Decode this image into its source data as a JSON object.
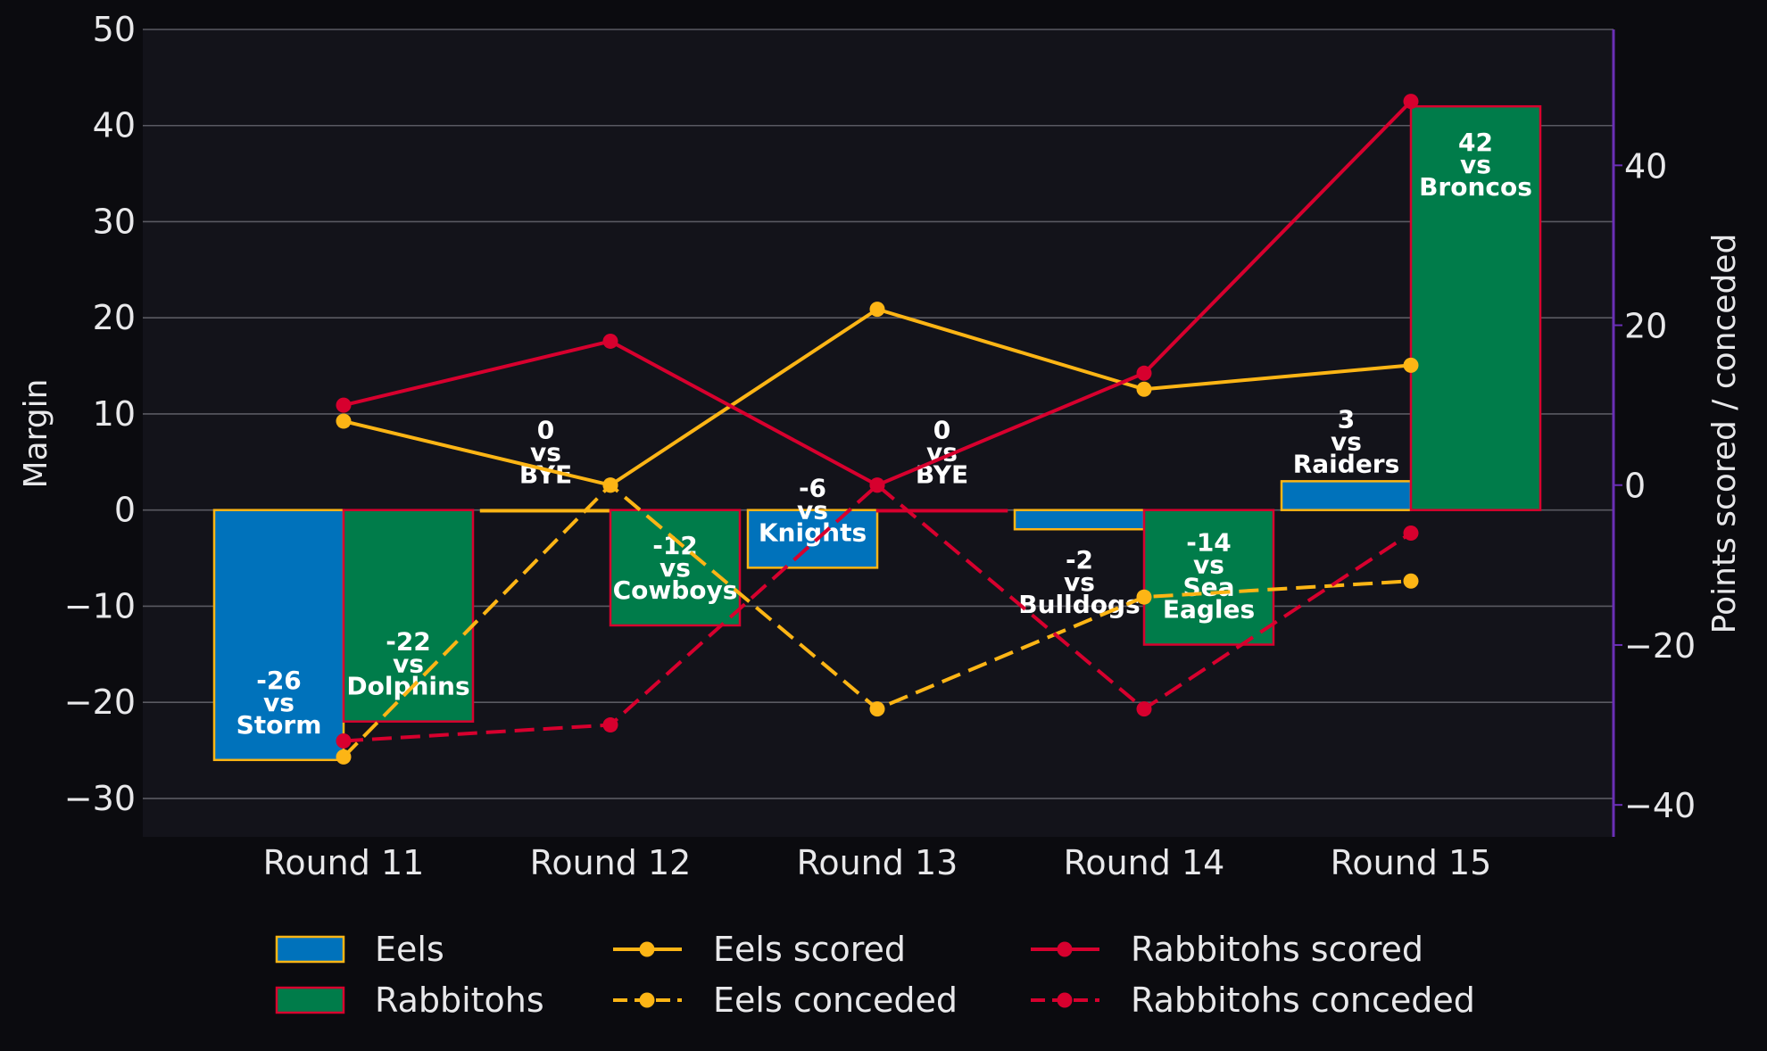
{
  "chart_data": {
    "type": "bar",
    "categories": [
      "Round 11",
      "Round 12",
      "Round 13",
      "Round 14",
      "Round 15"
    ],
    "ylabel": "Margin",
    "y2label": "Points scored / conceded",
    "ylim": [
      -34,
      50
    ],
    "y2lim": [
      -44,
      57
    ],
    "yticks": [
      50,
      40,
      30,
      20,
      10,
      0,
      -10,
      -20,
      -30
    ],
    "y2ticks": [
      40,
      20,
      0,
      -20,
      -40
    ],
    "grid": "horizontal",
    "legend_position": "bottom",
    "bar_series": [
      {
        "name": "Eels",
        "values": [
          -26,
          0,
          -6,
          -2,
          3
        ],
        "labels": [
          [
            "-26",
            "vs",
            "Storm"
          ],
          [
            "0",
            "vs",
            "BYE"
          ],
          [
            "-6",
            "vs",
            "Knights"
          ],
          [
            "-2",
            "vs",
            "Bulldogs"
          ],
          [
            "3",
            "vs",
            "Raiders"
          ]
        ],
        "fill": "#0072bb",
        "stroke": "#fdb515"
      },
      {
        "name": "Rabbitohs",
        "values": [
          -22,
          -12,
          0,
          -14,
          42
        ],
        "labels": [
          [
            "-22",
            "vs",
            "Dolphins"
          ],
          [
            "-12",
            "vs",
            "Cowboys"
          ],
          [
            "0",
            "vs",
            "BYE"
          ],
          [
            "-14",
            "vs",
            "Sea",
            "Eagles"
          ],
          [
            "42",
            "vs",
            "Broncos"
          ]
        ],
        "fill": "#007c4a",
        "stroke": "#d7002e"
      }
    ],
    "line_series": [
      {
        "name": "Eels scored",
        "values": [
          8,
          0,
          22,
          12,
          15
        ],
        "color": "#fdb515",
        "dash": false
      },
      {
        "name": "Eels conceded",
        "values": [
          -34,
          0,
          -28,
          -14,
          -12
        ],
        "color": "#fdb515",
        "dash": true
      },
      {
        "name": "Rabbitohs scored",
        "values": [
          10,
          18,
          0,
          14,
          48
        ],
        "color": "#d7002e",
        "dash": false
      },
      {
        "name": "Rabbitohs conceded",
        "values": [
          -32,
          -30,
          0,
          -28,
          -6
        ],
        "color": "#d7002e",
        "dash": true
      }
    ],
    "colors": {
      "background": "#0b0b0f",
      "plot_background": "#13131a",
      "grid": "#5a5a62",
      "right_spine": "#6a2fb5",
      "text": "#e8e8ea"
    }
  }
}
